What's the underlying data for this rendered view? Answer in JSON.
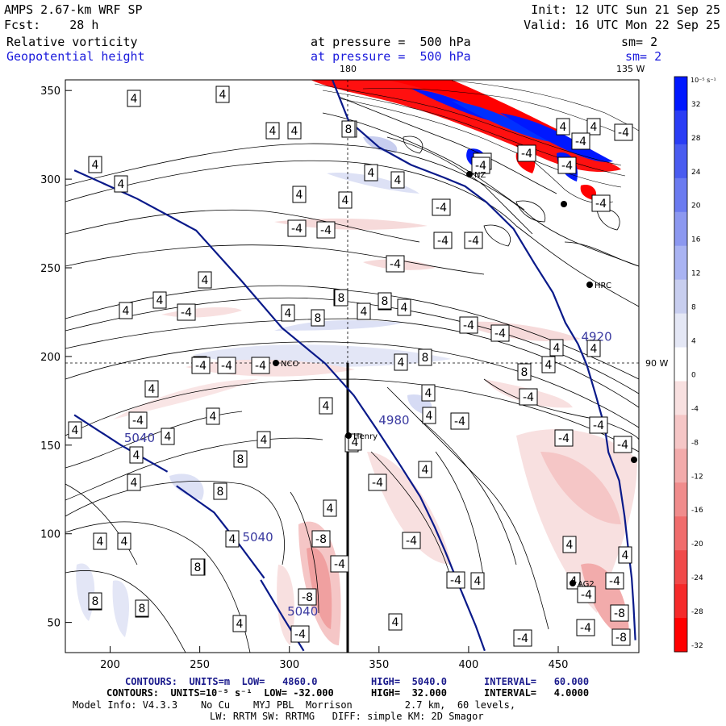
{
  "header": {
    "model": "AMPS 2.67-km WRF SP",
    "init": "Init: 12 UTC Sun 21 Sep 25",
    "fcst": "Fcst:    28 h",
    "valid": "Valid: 16 UTC Mon 22 Sep 25",
    "field1": "Relative vorticity",
    "field1_level": "at pressure =  500 hPa",
    "field1_sm": "sm= 2",
    "field2": "Geopotential height",
    "field2_level": "at pressure =  500 hPa",
    "field2_sm": "sm= 2"
  },
  "map_labels": {
    "lon_180": "180",
    "lon_135w": "135 W",
    "lon_90w": "90 W"
  },
  "colors": {
    "positive_max": "#0018ff",
    "negative_max": "#ff0000",
    "height_contour": "#0a1a8a",
    "vort_contour": "#000000"
  },
  "stations": [
    "NZ",
    "HRC",
    "NCO",
    "Henry",
    "AG2"
  ],
  "footer": {
    "line1_prefix": "CONTOURS:  UNITS=m  LOW=   4860.0",
    "line1_high": "HIGH=  5040.0",
    "line1_interval": "INTERVAL=   60.000",
    "line2_prefix": "CONTOURS:  UNITS=10⁻⁵ s⁻¹  LOW= -32.000",
    "line2_high": "HIGH=  32.000",
    "line2_interval": "INTERVAL=   4.0000",
    "line3": "Model Info: V4.3.3    No Cu    MYJ PBL  Morrison         2.7 km,  60 levels,",
    "line4": "LW: RRTM SW: RRTMG   DIFF: simple KM: 2D Smagor"
  },
  "chart_data": {
    "type": "heatmap",
    "x_ticks": [
      200,
      250,
      300,
      350,
      400,
      450
    ],
    "y_ticks": [
      50,
      100,
      150,
      200,
      250,
      300,
      350
    ],
    "xlim": [
      175,
      495
    ],
    "ylim": [
      33,
      356
    ],
    "grid": false,
    "colorbar": {
      "units_label": "10⁻⁵ s⁻¹",
      "ticks": [
        32,
        28,
        24,
        20,
        16,
        12,
        8,
        4,
        0,
        -4,
        -8,
        -12,
        -16,
        -20,
        -24,
        -28,
        -32
      ],
      "colors": [
        "#0018ff",
        "#2a3df5",
        "#4a5cf0",
        "#6b7bf0",
        "#8c98f0",
        "#a9b3f2",
        "#c8ceef",
        "#e4e7f5",
        "#ffffff",
        "#f8e0e0",
        "#f5c6c6",
        "#f2abab",
        "#f08c8c",
        "#f06c6c",
        "#f04a4a",
        "#f52a2a",
        "#ff0000"
      ]
    },
    "height_contours": [
      {
        "label": "4920",
        "points": [
          [
            324,
            356
          ],
          [
            333,
            333
          ],
          [
            350,
            318
          ],
          [
            368,
            308
          ],
          [
            386,
            301
          ],
          [
            398,
            296
          ],
          [
            410,
            287
          ],
          [
            425,
            272
          ],
          [
            437,
            252
          ],
          [
            447,
            236
          ],
          [
            454,
            219
          ],
          [
            461,
            207
          ],
          [
            466,
            195
          ],
          [
            471,
            178
          ],
          [
            476,
            160
          ],
          [
            478,
            146
          ],
          [
            484,
            130
          ],
          [
            487,
            110
          ],
          [
            489,
            92
          ],
          [
            491,
            75
          ],
          [
            492,
            60
          ],
          [
            493,
            40
          ]
        ]
      },
      {
        "label": "4980",
        "points": [
          [
            180,
            305
          ],
          [
            215,
            289
          ],
          [
            248,
            271
          ],
          [
            273,
            243
          ],
          [
            296,
            216
          ],
          [
            320,
            196
          ],
          [
            336,
            178
          ],
          [
            348,
            160
          ],
          [
            361,
            140
          ],
          [
            373,
            121
          ],
          [
            381,
            104
          ],
          [
            387,
            90
          ],
          [
            395,
            70
          ],
          [
            404,
            48
          ],
          [
            409,
            34
          ]
        ]
      },
      {
        "label": "5040",
        "points": [
          [
            180,
            167
          ],
          [
            206,
            150
          ],
          [
            232,
            135
          ]
        ]
      },
      {
        "label": "5040",
        "points": [
          [
            237,
            127
          ],
          [
            258,
            112
          ],
          [
            272,
            94
          ],
          [
            286,
            75
          ]
        ]
      },
      {
        "label": "5040",
        "points": [
          [
            284,
            74
          ],
          [
            297,
            52
          ],
          [
            308,
            34
          ]
        ]
      }
    ],
    "vort_label_count_positive": 54,
    "vort_label_count_negative": 34
  }
}
